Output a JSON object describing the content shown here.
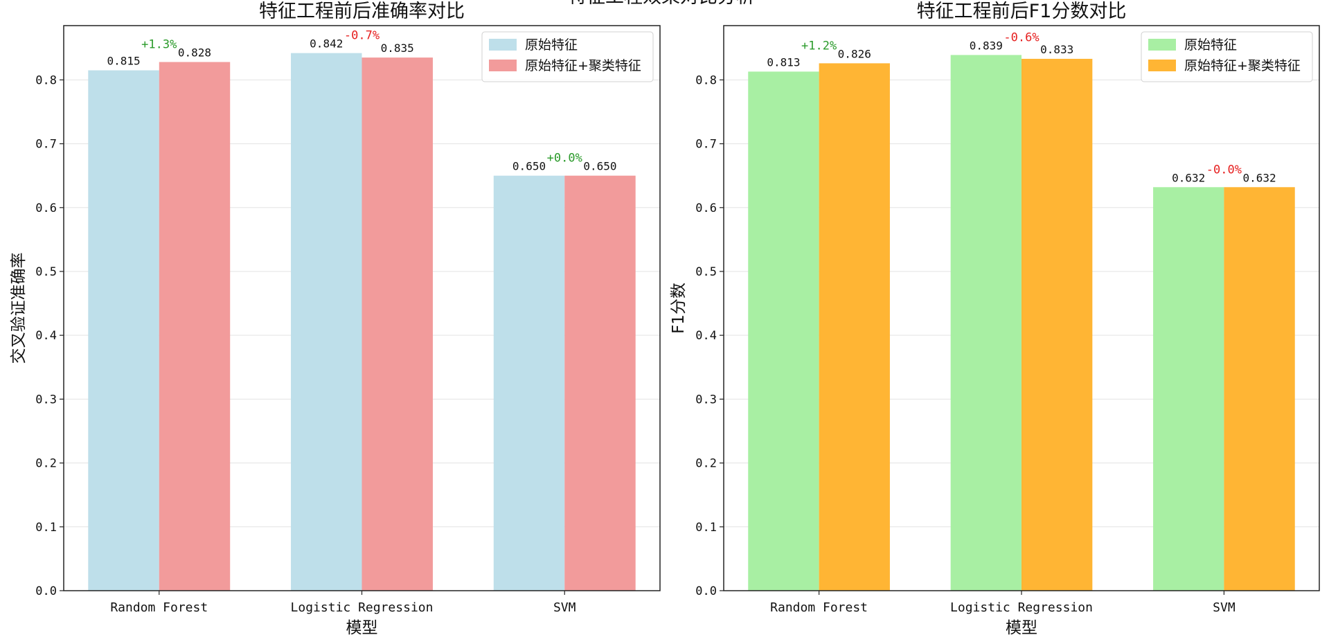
{
  "suptitle": "特征工程效果对比分析",
  "chart_data": [
    {
      "type": "bar",
      "title": "特征工程前后准确率对比",
      "xlabel": "模型",
      "ylabel": "交叉验证准确率",
      "categories": [
        "Random Forest",
        "Logistic Regression",
        "SVM"
      ],
      "ylim": [
        0,
        0.885
      ],
      "yticks": [
        "0.0",
        "0.1",
        "0.2",
        "0.3",
        "0.4",
        "0.5",
        "0.6",
        "0.7",
        "0.8"
      ],
      "grid": "y",
      "legend_position": "top-right",
      "series": [
        {
          "name": "原始特征",
          "color": "#BEDFEA",
          "values": [
            0.815,
            0.842,
            0.65
          ],
          "labels": [
            "0.815",
            "0.842",
            "0.650"
          ]
        },
        {
          "name": "原始特征+聚类特征",
          "color": "#F29B9B",
          "values": [
            0.828,
            0.835,
            0.65
          ],
          "labels": [
            "0.828",
            "0.835",
            "0.650"
          ]
        }
      ],
      "annotations": [
        {
          "text": "+1.3%",
          "color": "#2A9A2A",
          "category": 0
        },
        {
          "text": "-0.7%",
          "color": "#E62020",
          "category": 1
        },
        {
          "text": "+0.0%",
          "color": "#2A9A2A",
          "category": 2
        }
      ]
    },
    {
      "type": "bar",
      "title": "特征工程前后F1分数对比",
      "xlabel": "模型",
      "ylabel": "F1分数",
      "categories": [
        "Random Forest",
        "Logistic Regression",
        "SVM"
      ],
      "ylim": [
        0,
        0.885
      ],
      "yticks": [
        "0.0",
        "0.1",
        "0.2",
        "0.3",
        "0.4",
        "0.5",
        "0.6",
        "0.7",
        "0.8"
      ],
      "grid": "y",
      "legend_position": "top-right",
      "series": [
        {
          "name": "原始特征",
          "color": "#A8EFA3",
          "values": [
            0.813,
            0.839,
            0.632
          ],
          "labels": [
            "0.813",
            "0.839",
            "0.632"
          ]
        },
        {
          "name": "原始特征+聚类特征",
          "color": "#FFB534",
          "values": [
            0.826,
            0.833,
            0.632
          ],
          "labels": [
            "0.826",
            "0.833",
            "0.632"
          ]
        }
      ],
      "annotations": [
        {
          "text": "+1.2%",
          "color": "#2A9A2A",
          "category": 0
        },
        {
          "text": "-0.6%",
          "color": "#E62020",
          "category": 1
        },
        {
          "text": "-0.0%",
          "color": "#E62020",
          "category": 2
        }
      ]
    }
  ]
}
